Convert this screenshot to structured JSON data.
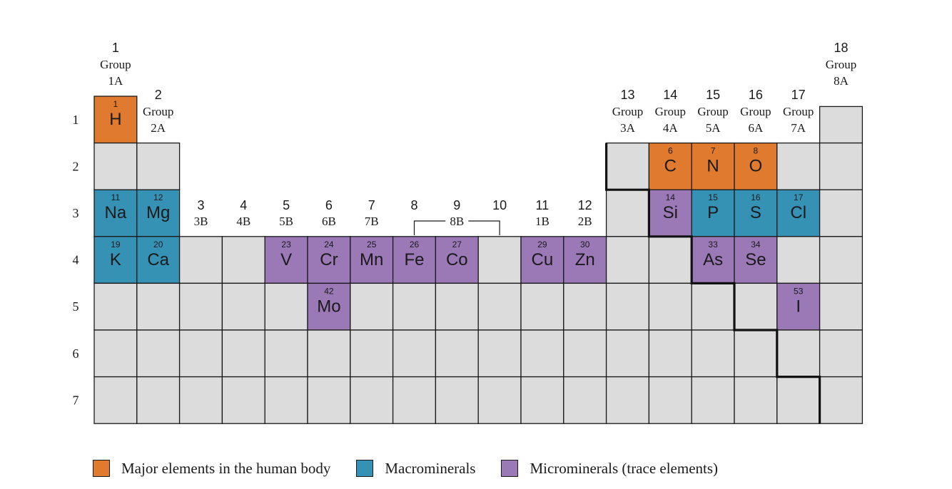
{
  "colors": {
    "major": "#E07A2E",
    "macro": "#3592B4",
    "micro": "#9B78B6",
    "empty": "#DCDCDC"
  },
  "period_labels": [
    "1",
    "2",
    "3",
    "4",
    "5",
    "6",
    "7"
  ],
  "group_headers": [
    {
      "num": "1",
      "g": "Group",
      "ab": "1A"
    },
    {
      "num": "2",
      "g": "Group",
      "ab": "2A"
    },
    {
      "num": "3",
      "ab": "3B"
    },
    {
      "num": "4",
      "ab": "4B"
    },
    {
      "num": "5",
      "ab": "5B"
    },
    {
      "num": "6",
      "ab": "6B"
    },
    {
      "num": "7",
      "ab": "7B"
    },
    {
      "num": "8"
    },
    {
      "num": "9"
    },
    {
      "num": "10"
    },
    {
      "num": "11",
      "ab": "1B"
    },
    {
      "num": "12",
      "ab": "2B"
    },
    {
      "num": "13",
      "g": "Group",
      "ab": "3A"
    },
    {
      "num": "14",
      "g": "Group",
      "ab": "4A"
    },
    {
      "num": "15",
      "g": "Group",
      "ab": "5A"
    },
    {
      "num": "16",
      "g": "Group",
      "ab": "6A"
    },
    {
      "num": "17",
      "g": "Group",
      "ab": "7A"
    },
    {
      "num": "18",
      "g": "Group",
      "ab": "8A"
    }
  ],
  "bracket_label": "8B",
  "elements": [
    {
      "n": "1",
      "s": "H",
      "row": 1,
      "col": 1,
      "cat": "major"
    },
    {
      "n": "6",
      "s": "C",
      "row": 2,
      "col": 14,
      "cat": "major"
    },
    {
      "n": "7",
      "s": "N",
      "row": 2,
      "col": 15,
      "cat": "major"
    },
    {
      "n": "8",
      "s": "O",
      "row": 2,
      "col": 16,
      "cat": "major"
    },
    {
      "n": "11",
      "s": "Na",
      "row": 3,
      "col": 1,
      "cat": "macro"
    },
    {
      "n": "12",
      "s": "Mg",
      "row": 3,
      "col": 2,
      "cat": "macro"
    },
    {
      "n": "14",
      "s": "Si",
      "row": 3,
      "col": 14,
      "cat": "micro"
    },
    {
      "n": "15",
      "s": "P",
      "row": 3,
      "col": 15,
      "cat": "macro"
    },
    {
      "n": "16",
      "s": "S",
      "row": 3,
      "col": 16,
      "cat": "macro"
    },
    {
      "n": "17",
      "s": "Cl",
      "row": 3,
      "col": 17,
      "cat": "macro"
    },
    {
      "n": "19",
      "s": "K",
      "row": 4,
      "col": 1,
      "cat": "macro"
    },
    {
      "n": "20",
      "s": "Ca",
      "row": 4,
      "col": 2,
      "cat": "macro"
    },
    {
      "n": "23",
      "s": "V",
      "row": 4,
      "col": 5,
      "cat": "micro"
    },
    {
      "n": "24",
      "s": "Cr",
      "row": 4,
      "col": 6,
      "cat": "micro"
    },
    {
      "n": "25",
      "s": "Mn",
      "row": 4,
      "col": 7,
      "cat": "micro"
    },
    {
      "n": "26",
      "s": "Fe",
      "row": 4,
      "col": 8,
      "cat": "micro"
    },
    {
      "n": "27",
      "s": "Co",
      "row": 4,
      "col": 9,
      "cat": "micro"
    },
    {
      "n": "29",
      "s": "Cu",
      "row": 4,
      "col": 11,
      "cat": "micro"
    },
    {
      "n": "30",
      "s": "Zn",
      "row": 4,
      "col": 12,
      "cat": "micro"
    },
    {
      "n": "33",
      "s": "As",
      "row": 4,
      "col": 15,
      "cat": "micro"
    },
    {
      "n": "34",
      "s": "Se",
      "row": 4,
      "col": 16,
      "cat": "micro"
    },
    {
      "n": "42",
      "s": "Mo",
      "row": 5,
      "col": 6,
      "cat": "micro"
    },
    {
      "n": "53",
      "s": "I",
      "row": 5,
      "col": 17,
      "cat": "micro"
    }
  ],
  "legend": {
    "major": "Major elements in the human body",
    "macro": "Macrominerals",
    "micro": "Microminerals (trace elements)"
  }
}
